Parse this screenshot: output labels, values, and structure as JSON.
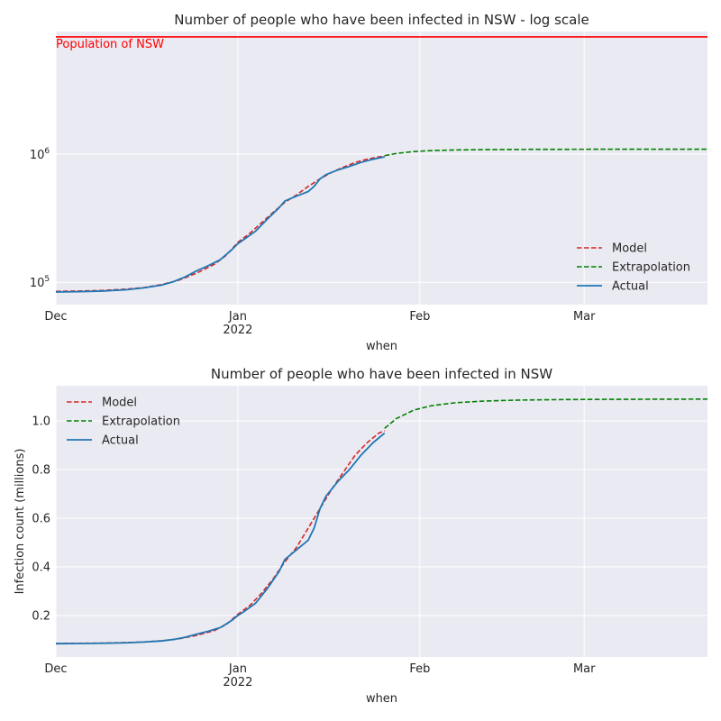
{
  "colors": {
    "model": "#d62728",
    "extrapolation": "#008000",
    "actual": "#1f77b4",
    "population": "#ff0000",
    "background": "#eaeaf2"
  },
  "chart_data": [
    {
      "type": "line",
      "title": "Number of people who have been infected in NSW - log scale",
      "xlabel": "when",
      "ylabel": "",
      "yscale": "log",
      "xlim": [
        "2021-12-01",
        "2022-03-22"
      ],
      "ylim": [
        67000,
        9000000
      ],
      "x_ticks": [
        {
          "date": "2021-12-01",
          "label": "Dec",
          "sublabel": ""
        },
        {
          "date": "2022-01-01",
          "label": "Jan",
          "sublabel": "2022"
        },
        {
          "date": "2022-02-01",
          "label": "Feb",
          "sublabel": ""
        },
        {
          "date": "2022-03-01",
          "label": "Mar",
          "sublabel": ""
        }
      ],
      "y_ticks": [
        {
          "value": 100000,
          "base": "10",
          "exp": "5"
        },
        {
          "value": 1000000,
          "base": "10",
          "exp": "6"
        }
      ],
      "grid": true,
      "legend_position": "lower right",
      "annotation": {
        "text": "Population of NSW",
        "value": 8170000
      },
      "series": [
        {
          "name": "Model",
          "style": "dashed",
          "color": "#d62728",
          "points": [
            [
              "2021-12-01",
              85000
            ],
            [
              "2021-12-05",
              85500
            ],
            [
              "2021-12-09",
              86500
            ],
            [
              "2021-12-13",
              88500
            ],
            [
              "2021-12-16",
              91000
            ],
            [
              "2021-12-19",
              96000
            ],
            [
              "2021-12-22",
              104000
            ],
            [
              "2021-12-25",
              118000
            ],
            [
              "2021-12-28",
              138000
            ],
            [
              "2021-12-30",
              162000
            ],
            [
              "2022-01-01",
              205000
            ],
            [
              "2022-01-03",
              240000
            ],
            [
              "2022-01-05",
              290000
            ],
            [
              "2022-01-07",
              350000
            ],
            [
              "2022-01-09",
              420000
            ],
            [
              "2022-01-11",
              480000
            ],
            [
              "2022-01-13",
              560000
            ],
            [
              "2022-01-15",
              640000
            ],
            [
              "2022-01-17",
              720000
            ],
            [
              "2022-01-19",
              790000
            ],
            [
              "2022-01-21",
              860000
            ],
            [
              "2022-01-23",
              910000
            ],
            [
              "2022-01-25",
              950000
            ],
            [
              "2022-01-26",
              960000
            ]
          ]
        },
        {
          "name": "Extrapolation",
          "style": "dashed",
          "color": "#008000",
          "points": [
            [
              "2022-01-26",
              970000
            ],
            [
              "2022-01-28",
              1010000
            ],
            [
              "2022-01-31",
              1045000
            ],
            [
              "2022-02-03",
              1063000
            ],
            [
              "2022-02-07",
              1075000
            ],
            [
              "2022-02-12",
              1082000
            ],
            [
              "2022-02-18",
              1086000
            ],
            [
              "2022-02-25",
              1088000
            ],
            [
              "2022-03-05",
              1089000
            ],
            [
              "2022-03-22",
              1090000
            ]
          ]
        },
        {
          "name": "Actual",
          "style": "solid",
          "color": "#1f77b4",
          "points": [
            [
              "2021-12-01",
              84000
            ],
            [
              "2021-12-05",
              84500
            ],
            [
              "2021-12-09",
              85500
            ],
            [
              "2021-12-13",
              87500
            ],
            [
              "2021-12-16",
              90500
            ],
            [
              "2021-12-19",
              95000
            ],
            [
              "2021-12-21",
              101000
            ],
            [
              "2021-12-23",
              110000
            ],
            [
              "2021-12-25",
              123000
            ],
            [
              "2021-12-27",
              135000
            ],
            [
              "2021-12-29",
              150000
            ],
            [
              "2021-12-31",
              180000
            ],
            [
              "2022-01-01",
              200000
            ],
            [
              "2022-01-02",
              215000
            ],
            [
              "2022-01-04",
              250000
            ],
            [
              "2022-01-06",
              310000
            ],
            [
              "2022-01-08",
              380000
            ],
            [
              "2022-01-09",
              430000
            ],
            [
              "2022-01-11",
              470000
            ],
            [
              "2022-01-13",
              510000
            ],
            [
              "2022-01-14",
              560000
            ],
            [
              "2022-01-15",
              640000
            ],
            [
              "2022-01-16",
              690000
            ],
            [
              "2022-01-18",
              750000
            ],
            [
              "2022-01-20",
              800000
            ],
            [
              "2022-01-22",
              860000
            ],
            [
              "2022-01-24",
              910000
            ],
            [
              "2022-01-26",
              950000
            ]
          ]
        }
      ]
    },
    {
      "type": "line",
      "title": "Number of people who have been infected in NSW",
      "xlabel": "when",
      "ylabel": "Infection count (millions)",
      "yscale": "linear",
      "xlim": [
        "2021-12-01",
        "2022-03-22"
      ],
      "ylim": [
        0.029,
        1.145
      ],
      "x_ticks": [
        {
          "date": "2021-12-01",
          "label": "Dec",
          "sublabel": ""
        },
        {
          "date": "2022-01-01",
          "label": "Jan",
          "sublabel": "2022"
        },
        {
          "date": "2022-02-01",
          "label": "Feb",
          "sublabel": ""
        },
        {
          "date": "2022-03-01",
          "label": "Mar",
          "sublabel": ""
        }
      ],
      "y_ticks": [
        {
          "value": 0.2,
          "label": "0.2"
        },
        {
          "value": 0.4,
          "label": "0.4"
        },
        {
          "value": 0.6,
          "label": "0.6"
        },
        {
          "value": 0.8,
          "label": "0.8"
        },
        {
          "value": 1.0,
          "label": "1.0"
        }
      ],
      "grid": true,
      "legend_position": "upper left",
      "series": [
        {
          "name": "Model",
          "style": "dashed",
          "color": "#d62728",
          "points": [
            [
              "2021-12-01",
              0.085
            ],
            [
              "2021-12-05",
              0.0855
            ],
            [
              "2021-12-09",
              0.0865
            ],
            [
              "2021-12-13",
              0.0885
            ],
            [
              "2021-12-16",
              0.091
            ],
            [
              "2021-12-19",
              0.096
            ],
            [
              "2021-12-22",
              0.104
            ],
            [
              "2021-12-25",
              0.118
            ],
            [
              "2021-12-28",
              0.138
            ],
            [
              "2021-12-30",
              0.162
            ],
            [
              "2022-01-01",
              0.205
            ],
            [
              "2022-01-03",
              0.24
            ],
            [
              "2022-01-05",
              0.29
            ],
            [
              "2022-01-07",
              0.35
            ],
            [
              "2022-01-09",
              0.42
            ],
            [
              "2022-01-11",
              0.48
            ],
            [
              "2022-01-13",
              0.56
            ],
            [
              "2022-01-15",
              0.64
            ],
            [
              "2022-01-17",
              0.72
            ],
            [
              "2022-01-19",
              0.79
            ],
            [
              "2022-01-21",
              0.86
            ],
            [
              "2022-01-23",
              0.91
            ],
            [
              "2022-01-25",
              0.95
            ],
            [
              "2022-01-26",
              0.96
            ]
          ]
        },
        {
          "name": "Extrapolation",
          "style": "dashed",
          "color": "#008000",
          "points": [
            [
              "2022-01-26",
              0.97
            ],
            [
              "2022-01-28",
              1.01
            ],
            [
              "2022-01-31",
              1.045
            ],
            [
              "2022-02-03",
              1.063
            ],
            [
              "2022-02-07",
              1.075
            ],
            [
              "2022-02-12",
              1.082
            ],
            [
              "2022-02-18",
              1.086
            ],
            [
              "2022-02-25",
              1.088
            ],
            [
              "2022-03-05",
              1.089
            ],
            [
              "2022-03-22",
              1.09
            ]
          ]
        },
        {
          "name": "Actual",
          "style": "solid",
          "color": "#1f77b4",
          "points": [
            [
              "2021-12-01",
              0.084
            ],
            [
              "2021-12-05",
              0.0845
            ],
            [
              "2021-12-09",
              0.0855
            ],
            [
              "2021-12-13",
              0.0875
            ],
            [
              "2021-12-16",
              0.0905
            ],
            [
              "2021-12-19",
              0.095
            ],
            [
              "2021-12-21",
              0.101
            ],
            [
              "2021-12-23",
              0.11
            ],
            [
              "2021-12-25",
              0.123
            ],
            [
              "2021-12-27",
              0.135
            ],
            [
              "2021-12-29",
              0.15
            ],
            [
              "2021-12-31",
              0.18
            ],
            [
              "2022-01-01",
              0.2
            ],
            [
              "2022-01-02",
              0.215
            ],
            [
              "2022-01-04",
              0.25
            ],
            [
              "2022-01-06",
              0.31
            ],
            [
              "2022-01-08",
              0.38
            ],
            [
              "2022-01-09",
              0.43
            ],
            [
              "2022-01-11",
              0.47
            ],
            [
              "2022-01-13",
              0.51
            ],
            [
              "2022-01-14",
              0.56
            ],
            [
              "2022-01-15",
              0.64
            ],
            [
              "2022-01-16",
              0.69
            ],
            [
              "2022-01-18",
              0.75
            ],
            [
              "2022-01-20",
              0.8
            ],
            [
              "2022-01-22",
              0.86
            ],
            [
              "2022-01-24",
              0.91
            ],
            [
              "2022-01-26",
              0.95
            ]
          ]
        }
      ]
    }
  ]
}
